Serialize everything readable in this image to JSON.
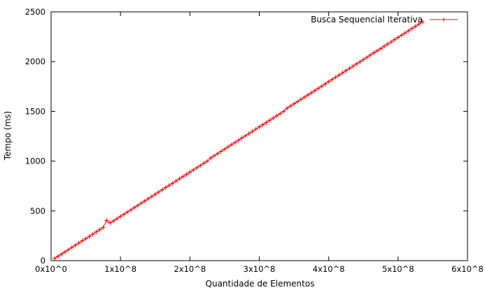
{
  "chart_data": {
    "type": "line",
    "xlabel": "Quantidade de Elementos",
    "ylabel": "Tempo (ms)",
    "xlim": [
      0,
      600000000
    ],
    "ylim": [
      0,
      2500
    ],
    "x_ticks": [
      {
        "value": 0,
        "label": "0x10^0"
      },
      {
        "value": 100000000,
        "label": "1x10^8"
      },
      {
        "value": 200000000,
        "label": "2x10^8"
      },
      {
        "value": 300000000,
        "label": "3x10^8"
      },
      {
        "value": 400000000,
        "label": "4x10^8"
      },
      {
        "value": 500000000,
        "label": "5x10^8"
      },
      {
        "value": 600000000,
        "label": "6x10^8"
      }
    ],
    "y_ticks": [
      {
        "value": 0,
        "label": "0"
      },
      {
        "value": 500,
        "label": "500"
      },
      {
        "value": 1000,
        "label": "1000"
      },
      {
        "value": 1500,
        "label": "1500"
      },
      {
        "value": 2000,
        "label": "2000"
      },
      {
        "value": 2500,
        "label": "2500"
      }
    ],
    "grid": false,
    "legend": "top-right",
    "series": [
      {
        "name": "Busca Sequencial Iterativa",
        "color": "#ff0000",
        "marker": "plus",
        "x": [
          5000000,
          10000000,
          15000000,
          20000000,
          25000000,
          30000000,
          35000000,
          40000000,
          45000000,
          50000000,
          55000000,
          60000000,
          65000000,
          70000000,
          75000000,
          80000000,
          85000000,
          90000000,
          95000000,
          100000000,
          105000000,
          110000000,
          115000000,
          120000000,
          125000000,
          130000000,
          135000000,
          140000000,
          145000000,
          150000000,
          155000000,
          160000000,
          165000000,
          170000000,
          175000000,
          180000000,
          185000000,
          190000000,
          195000000,
          200000000,
          205000000,
          210000000,
          215000000,
          220000000,
          225000000,
          230000000,
          235000000,
          240000000,
          245000000,
          250000000,
          255000000,
          260000000,
          265000000,
          270000000,
          275000000,
          280000000,
          285000000,
          290000000,
          295000000,
          300000000,
          305000000,
          310000000,
          315000000,
          320000000,
          325000000,
          330000000,
          335000000,
          340000000,
          345000000,
          350000000,
          355000000,
          360000000,
          365000000,
          370000000,
          375000000,
          380000000,
          385000000,
          390000000,
          395000000,
          400000000,
          405000000,
          410000000,
          415000000,
          420000000,
          425000000,
          430000000,
          435000000,
          440000000,
          445000000,
          450000000,
          455000000,
          460000000,
          465000000,
          470000000,
          475000000,
          480000000,
          485000000,
          490000000,
          495000000,
          500000000,
          505000000,
          510000000,
          515000000,
          520000000,
          525000000,
          530000000,
          535000000
        ],
        "values": [
          22,
          44,
          66,
          89,
          111,
          133,
          155,
          177,
          200,
          222,
          244,
          266,
          289,
          311,
          333,
          405,
          380,
          400,
          422,
          445,
          467,
          489,
          511,
          534,
          556,
          578,
          600,
          623,
          645,
          667,
          689,
          712,
          734,
          756,
          778,
          801,
          823,
          845,
          867,
          890,
          912,
          934,
          956,
          979,
          1001,
          1032,
          1054,
          1077,
          1099,
          1121,
          1144,
          1166,
          1188,
          1210,
          1233,
          1255,
          1277,
          1299,
          1322,
          1344,
          1366,
          1388,
          1411,
          1433,
          1455,
          1477,
          1500,
          1532,
          1554,
          1576,
          1598,
          1621,
          1643,
          1665,
          1687,
          1710,
          1732,
          1754,
          1776,
          1799,
          1821,
          1843,
          1865,
          1888,
          1910,
          1932,
          1954,
          1977,
          1999,
          2021,
          2043,
          2066,
          2088,
          2110,
          2132,
          2155,
          2177,
          2199,
          2221,
          2244,
          2266,
          2288,
          2310,
          2333,
          2355,
          2377,
          2399
        ]
      }
    ]
  }
}
